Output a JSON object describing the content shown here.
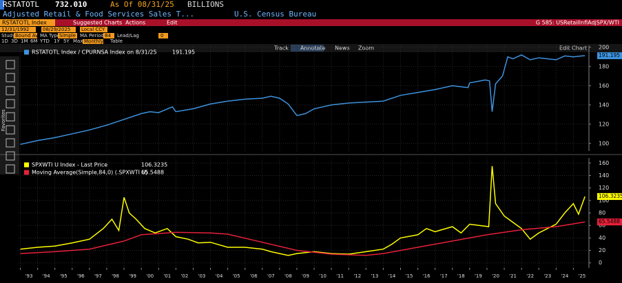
{
  "header": {
    "ticker": "RSTATOTL",
    "price": "732.010",
    "as_of": "As Of 08/31/25",
    "units": "BILLIONS",
    "description": "Adjusted Retail & Food Services Sales T...",
    "source": "U.S. Census Bureau"
  },
  "menu": {
    "security": "RSTATOTL Index",
    "items": [
      "Suggested Charts",
      "Actions",
      "Edit"
    ],
    "chart_name": "G 585: USRetailInflAdjSPX/WTI"
  },
  "controls": {
    "start": "12/31/1992",
    "end": "08/29/2025",
    "currency": "Local CCY",
    "study_label": "Study",
    "study": "Bound Avg",
    "ma_type_label": "MA Type",
    "ma_type": "Simple",
    "ma_period_label": "MA Period",
    "ma_period": "84",
    "lead_lag_label": "Lead/Lag",
    "lead_lag": "0",
    "periods": [
      "1D",
      "3D",
      "1M",
      "6M",
      "YTD",
      "1Y",
      "5Y",
      "Max"
    ],
    "frequency": "Monthly",
    "table": "Table"
  },
  "tools": {
    "items": [
      "Track",
      "Annotate",
      "News",
      "Zoom"
    ],
    "edit_chart": "Edit Chart",
    "favorites": "Favorites"
  },
  "chart_data": [
    {
      "type": "line",
      "xlim": [
        1992.9,
        2025.9
      ],
      "ylim": [
        92,
        202
      ],
      "yticks": [
        100,
        120,
        140,
        160,
        180,
        200
      ],
      "grid": true,
      "series": [
        {
          "name": "RSTATOTL Index / CPURNSA Index on 8/31/25",
          "color": "#3d93e0",
          "x": [
            1993,
            1994,
            1995,
            1996,
            1997,
            1998,
            1999,
            2000,
            2000.5,
            2001,
            2001.8,
            2002,
            2003,
            2004,
            2005,
            2006,
            2007,
            2007.5,
            2008,
            2008.5,
            2009,
            2009.5,
            2010,
            2011,
            2012,
            2013,
            2014,
            2015,
            2016,
            2017,
            2018,
            2018.9,
            2019,
            2019.9,
            2020.15,
            2020.3,
            2020.5,
            2020.9,
            2021.2,
            2021.5,
            2022,
            2022.5,
            2023,
            2023.5,
            2024,
            2024.5,
            2025,
            2025.5,
            2025.67
          ],
          "values": [
            99,
            103,
            106,
            110,
            114,
            119,
            125,
            131,
            133,
            132,
            138,
            133,
            136,
            141,
            144,
            146,
            147,
            149,
            147,
            141,
            129,
            131,
            136,
            140,
            142,
            143,
            144,
            150,
            153,
            156,
            160,
            158,
            163,
            166,
            165,
            133,
            162,
            170,
            190,
            188,
            192,
            187,
            189,
            188,
            187,
            191,
            190,
            191,
            191.195
          ]
        }
      ]
    },
    {
      "type": "line",
      "xlim": [
        1992.9,
        2025.9
      ],
      "ylim": [
        -8,
        168
      ],
      "yticks": [
        0,
        20,
        40,
        60,
        80,
        100,
        120,
        140,
        160
      ],
      "grid": true,
      "xticks": [
        {
          "value": 1993,
          "label": "'93"
        },
        {
          "value": 1994,
          "label": "'94"
        },
        {
          "value": 1995,
          "label": "'95"
        },
        {
          "value": 1996,
          "label": "'96"
        },
        {
          "value": 1997,
          "label": "'97"
        },
        {
          "value": 1998,
          "label": "'98"
        },
        {
          "value": 1999,
          "label": "'99"
        },
        {
          "value": 2000,
          "label": "'00"
        },
        {
          "value": 2001,
          "label": "'01"
        },
        {
          "value": 2002,
          "label": "'02"
        },
        {
          "value": 2003,
          "label": "'03"
        },
        {
          "value": 2004,
          "label": "'04"
        },
        {
          "value": 2005,
          "label": "'05"
        },
        {
          "value": 2006,
          "label": "'06"
        },
        {
          "value": 2007,
          "label": "'07"
        },
        {
          "value": 2008,
          "label": "'08"
        },
        {
          "value": 2009,
          "label": "'09"
        },
        {
          "value": 2010,
          "label": "'10"
        },
        {
          "value": 2011,
          "label": "'11"
        },
        {
          "value": 2012,
          "label": "'12"
        },
        {
          "value": 2013,
          "label": "'13"
        },
        {
          "value": 2014,
          "label": "'14"
        },
        {
          "value": 2015,
          "label": "'15"
        },
        {
          "value": 2016,
          "label": "'16"
        },
        {
          "value": 2017,
          "label": "'17"
        },
        {
          "value": 2018,
          "label": "'18"
        },
        {
          "value": 2019,
          "label": "'19"
        },
        {
          "value": 2020,
          "label": "'20"
        },
        {
          "value": 2021,
          "label": "'21"
        },
        {
          "value": 2022,
          "label": "'22"
        },
        {
          "value": 2023,
          "label": "'23"
        },
        {
          "value": 2024,
          "label": "'24"
        },
        {
          "value": 2025,
          "label": "'25"
        }
      ],
      "series": [
        {
          "name": "SPXWTI U Index - Last Price",
          "color": "#ffff00",
          "x": [
            1993,
            1994,
            1995,
            1996,
            1997,
            1997.8,
            1998.3,
            1998.7,
            1999.0,
            1999.3,
            1999.7,
            2000.2,
            2000.8,
            2001.5,
            2002,
            2002.7,
            2003.3,
            2004,
            2005,
            2006,
            2007,
            2007.5,
            2008,
            2008.5,
            2009,
            2010,
            2011,
            2012,
            2013,
            2014,
            2014.5,
            2015,
            2016,
            2016.5,
            2017,
            2018,
            2018.5,
            2019,
            2020.1,
            2020.3,
            2020.5,
            2021,
            2021.5,
            2022,
            2022.5,
            2023,
            2023.5,
            2024,
            2024.5,
            2025,
            2025.3,
            2025.67
          ],
          "values": [
            22,
            25,
            27,
            32,
            38,
            55,
            70,
            52,
            105,
            80,
            70,
            55,
            48,
            55,
            42,
            38,
            32,
            33,
            25,
            25,
            22,
            18,
            15,
            12,
            15,
            18,
            15,
            14,
            18,
            22,
            30,
            40,
            45,
            55,
            50,
            58,
            48,
            62,
            58,
            155,
            95,
            75,
            65,
            55,
            38,
            48,
            55,
            62,
            80,
            95,
            78,
            106.3235
          ]
        },
        {
          "name": "Moving Average(Simple,84,0) (.SPXWTI U)",
          "color": "#e8203a",
          "x": [
            1993,
            1995,
            1997,
            1999,
            2000,
            2002,
            2004,
            2005,
            2007,
            2009,
            2011,
            2013,
            2014,
            2016,
            2018,
            2020,
            2022,
            2024,
            2025.67
          ],
          "values": [
            15,
            18,
            22,
            35,
            45,
            49,
            48,
            46,
            33,
            20,
            14,
            12,
            15,
            25,
            35,
            45,
            53,
            58,
            65.5488
          ]
        }
      ]
    }
  ]
}
